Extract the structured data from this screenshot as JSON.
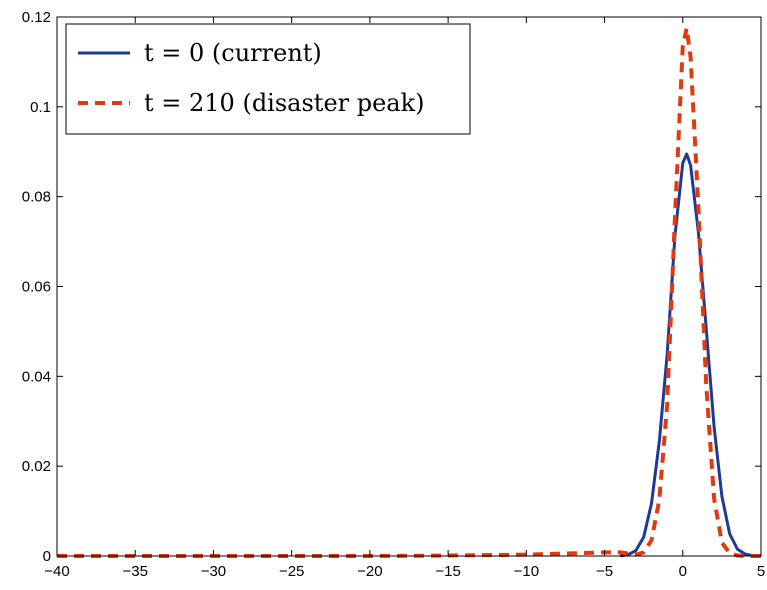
{
  "chart_data": {
    "type": "line",
    "title": "",
    "xlabel": "",
    "ylabel": "",
    "xlim": [
      -40,
      5
    ],
    "ylim": [
      0,
      0.12
    ],
    "xticks": [
      -40,
      -35,
      -30,
      -25,
      -20,
      -15,
      -10,
      -5,
      0,
      5
    ],
    "xtick_labels": [
      "−40",
      "−35",
      "−30",
      "−25",
      "−20",
      "−15",
      "−10",
      "−5",
      "0",
      "5"
    ],
    "yticks": [
      0,
      0.02,
      0.04,
      0.06,
      0.08,
      0.1,
      0.12
    ],
    "ytick_labels": [
      "0",
      "0.02",
      "0.04",
      "0.06",
      "0.08",
      "0.1",
      "0.12"
    ],
    "grid": false,
    "legend_position": "top-left",
    "series": [
      {
        "name": "t = 0 (current)",
        "color": "#1f3a93",
        "style": "solid",
        "x": [
          -4.0,
          -3.5,
          -3.0,
          -2.5,
          -2.0,
          -1.5,
          -1.0,
          -0.5,
          0.0,
          0.25,
          0.5,
          1.0,
          1.5,
          2.0,
          2.5,
          3.0,
          3.5,
          4.0,
          4.5,
          5.0
        ],
        "y": [
          0.0,
          0.0003,
          0.0012,
          0.0042,
          0.0117,
          0.0255,
          0.0448,
          0.0713,
          0.0875,
          0.0895,
          0.087,
          0.072,
          0.0506,
          0.0288,
          0.0133,
          0.0049,
          0.0015,
          0.0004,
          0.0001,
          0.0
        ]
      },
      {
        "name": "t = 210 (disaster peak)",
        "color": "#e03a10",
        "style": "dashed",
        "x": [
          -40.0,
          -35.0,
          -30.0,
          -25.0,
          -20.0,
          -15.0,
          -10.0,
          -5.0,
          -4.0,
          -3.0,
          -2.5,
          -2.0,
          -1.5,
          -1.0,
          -0.5,
          0.0,
          0.25,
          0.5,
          1.0,
          1.5,
          2.0,
          2.5,
          3.0,
          3.5,
          4.0,
          5.0
        ],
        "y": [
          0.0,
          0.0,
          0.0,
          0.0,
          0.0,
          0.0001,
          0.0003,
          0.0008,
          0.0008,
          0.0003,
          0.0008,
          0.0035,
          0.0125,
          0.0335,
          0.0755,
          0.1135,
          0.1175,
          0.111,
          0.0775,
          0.038,
          0.0128,
          0.003,
          0.0006,
          0.0001,
          0.0,
          0.0
        ]
      }
    ]
  }
}
